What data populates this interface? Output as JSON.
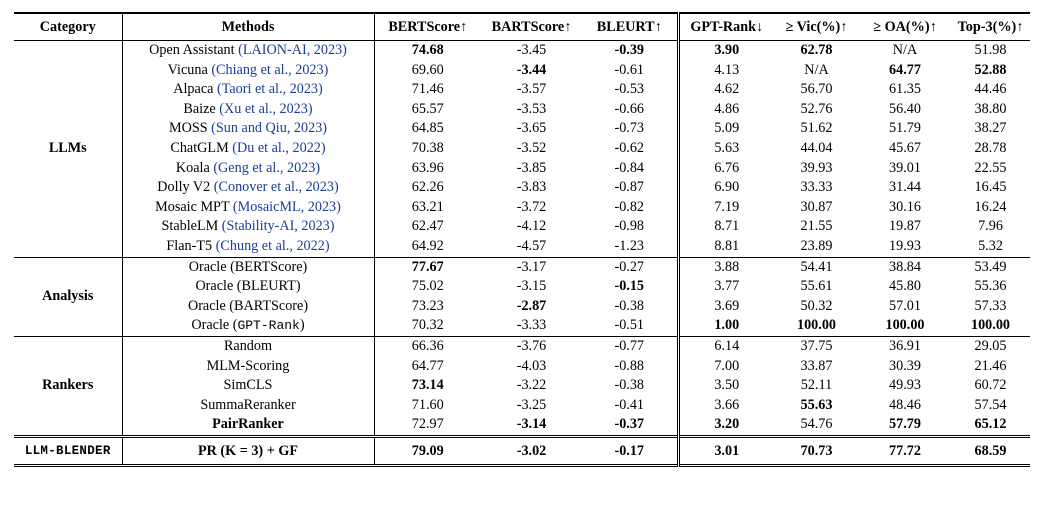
{
  "headers": [
    "Category",
    "Methods",
    "BERTScore↑",
    "BARTScore↑",
    "BLEURT↑",
    "GPT-Rank↓",
    "≥ Vic(%)↑",
    "≥ OA(%)↑",
    "Top-3(%)↑"
  ],
  "groups": [
    {
      "category": "LLMs",
      "rows": [
        {
          "method": "Open Assistant",
          "cite": "(LAION-AI, 2023)",
          "vals": [
            "74.68",
            "-3.45",
            "-0.39",
            "3.90",
            "62.78",
            "N/A",
            "51.98"
          ],
          "bold": [
            0,
            2,
            3,
            4
          ]
        },
        {
          "method": "Vicuna",
          "cite": "(Chiang et al., 2023)",
          "vals": [
            "69.60",
            "-3.44",
            "-0.61",
            "4.13",
            "N/A",
            "64.77",
            "52.88"
          ],
          "bold": [
            1,
            5,
            6
          ]
        },
        {
          "method": "Alpaca",
          "cite": "(Taori et al., 2023)",
          "vals": [
            "71.46",
            "-3.57",
            "-0.53",
            "4.62",
            "56.70",
            "61.35",
            "44.46"
          ],
          "bold": []
        },
        {
          "method": "Baize",
          "cite": "(Xu et al., 2023)",
          "vals": [
            "65.57",
            "-3.53",
            "-0.66",
            "4.86",
            "52.76",
            "56.40",
            "38.80"
          ],
          "bold": []
        },
        {
          "method": "MOSS",
          "cite": "(Sun and Qiu, 2023)",
          "vals": [
            "64.85",
            "-3.65",
            "-0.73",
            "5.09",
            "51.62",
            "51.79",
            "38.27"
          ],
          "bold": []
        },
        {
          "method": "ChatGLM",
          "cite": "(Du et al., 2022)",
          "vals": [
            "70.38",
            "-3.52",
            "-0.62",
            "5.63",
            "44.04",
            "45.67",
            "28.78"
          ],
          "bold": []
        },
        {
          "method": "Koala",
          "cite": "(Geng et al., 2023)",
          "vals": [
            "63.96",
            "-3.85",
            "-0.84",
            "6.76",
            "39.93",
            "39.01",
            "22.55"
          ],
          "bold": []
        },
        {
          "method": "Dolly V2",
          "cite": "(Conover et al., 2023)",
          "vals": [
            "62.26",
            "-3.83",
            "-0.87",
            "6.90",
            "33.33",
            "31.44",
            "16.45"
          ],
          "bold": []
        },
        {
          "method": "Mosaic MPT",
          "cite": "(MosaicML, 2023)",
          "vals": [
            "63.21",
            "-3.72",
            "-0.82",
            "7.19",
            "30.87",
            "30.16",
            "16.24"
          ],
          "bold": []
        },
        {
          "method": "StableLM",
          "cite": "(Stability-AI, 2023)",
          "vals": [
            "62.47",
            "-4.12",
            "-0.98",
            "8.71",
            "21.55",
            "19.87",
            "7.96"
          ],
          "bold": []
        },
        {
          "method": "Flan-T5",
          "cite": "(Chung et al., 2022)",
          "vals": [
            "64.92",
            "-4.57",
            "-1.23",
            "8.81",
            "23.89",
            "19.93",
            "5.32"
          ],
          "bold": []
        }
      ]
    },
    {
      "category": "Analysis",
      "rows": [
        {
          "method": "Oracle (BERTScore)",
          "cite": "",
          "vals": [
            "77.67",
            "-3.17",
            "-0.27",
            "3.88",
            "54.41",
            "38.84",
            "53.49"
          ],
          "bold": [
            0
          ]
        },
        {
          "method": "Oracle (BLEURT)",
          "cite": "",
          "vals": [
            "75.02",
            "-3.15",
            "-0.15",
            "3.77",
            "55.61",
            "45.80",
            "55.36"
          ],
          "bold": [
            2
          ]
        },
        {
          "method": "Oracle (BARTScore)",
          "cite": "",
          "vals": [
            "73.23",
            "-2.87",
            "-0.38",
            "3.69",
            "50.32",
            "57.01",
            "57.33"
          ],
          "bold": [
            1
          ]
        },
        {
          "method": "Oracle (",
          "mono": "GPT-Rank",
          "tail": ")",
          "cite": "",
          "vals": [
            "70.32",
            "-3.33",
            "-0.51",
            "1.00",
            "100.00",
            "100.00",
            "100.00"
          ],
          "bold": [
            3,
            4,
            5,
            6
          ]
        }
      ]
    },
    {
      "category": "Rankers",
      "rows": [
        {
          "method": "Random",
          "cite": "",
          "vals": [
            "66.36",
            "-3.76",
            "-0.77",
            "6.14",
            "37.75",
            "36.91",
            "29.05"
          ],
          "bold": []
        },
        {
          "method": "MLM-Scoring",
          "cite": "",
          "vals": [
            "64.77",
            "-4.03",
            "-0.88",
            "7.00",
            "33.87",
            "30.39",
            "21.46"
          ],
          "bold": []
        },
        {
          "method": "SimCLS",
          "cite": "",
          "vals": [
            "73.14",
            "-3.22",
            "-0.38",
            "3.50",
            "52.11",
            "49.93",
            "60.72"
          ],
          "bold": [
            0
          ]
        },
        {
          "method": "SummaReranker",
          "cite": "",
          "vals": [
            "71.60",
            "-3.25",
            "-0.41",
            "3.66",
            "55.63",
            "48.46",
            "57.54"
          ],
          "bold": [
            4
          ]
        },
        {
          "method": "PairRanker",
          "cite": "",
          "vals": [
            "72.97",
            "-3.14",
            "-0.37",
            "3.20",
            "54.76",
            "57.79",
            "65.12"
          ],
          "bold": [
            1,
            2,
            3,
            5,
            6
          ],
          "methodBold": true
        }
      ]
    }
  ],
  "blender": {
    "category": "LLM-BLENDER",
    "method": "PR (K = 3) + GF",
    "vals": [
      "79.09",
      "-3.02",
      "-0.17",
      "3.01",
      "70.73",
      "77.72",
      "68.59"
    ]
  }
}
